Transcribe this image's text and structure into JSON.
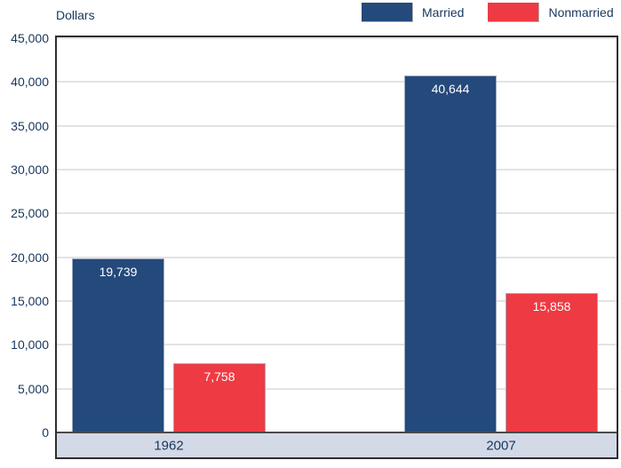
{
  "chart_data": {
    "type": "bar",
    "title": "",
    "ylabel": "Dollars",
    "xlabel": "",
    "categories": [
      "1962",
      "2007"
    ],
    "series": [
      {
        "name": "Married",
        "color": "#24497B",
        "values": [
          19739,
          40644
        ]
      },
      {
        "name": "Nonmarried",
        "color": "#EE3A42",
        "values": [
          7758,
          15858
        ]
      }
    ],
    "value_labels": {
      "Married": [
        "19,739",
        "40,644"
      ],
      "Nonmarried": [
        "7,758",
        "15,858"
      ]
    },
    "ylim": [
      0,
      45000
    ],
    "ytick_step": 5000,
    "ytick_labels": [
      "0",
      "5,000",
      "10,000",
      "15,000",
      "20,000",
      "25,000",
      "30,000",
      "35,000",
      "40,000",
      "45,000"
    ],
    "grid": true,
    "legend_position": "top-right"
  },
  "colors": {
    "text": "#17375E",
    "band_fill": "#D3D9E6",
    "gridline": "#E3E3E3",
    "plot_border": "#2E2E2E",
    "bar_border": "#9FACC4",
    "value_label_text": "#FFFFFF"
  }
}
